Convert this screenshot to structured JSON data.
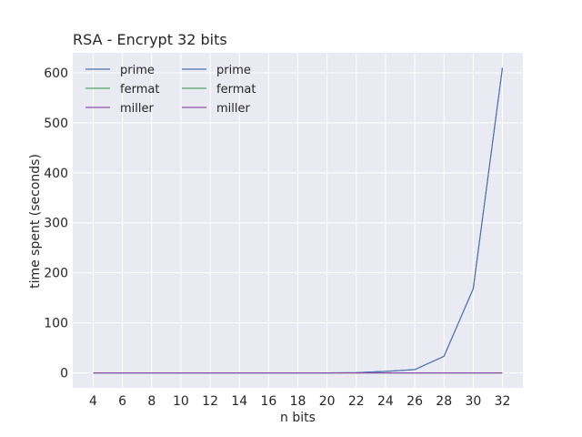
{
  "chart_data": {
    "type": "line",
    "title": "RSA - Encrypt 32 bits",
    "xlabel": "n bits",
    "ylabel": "time spent (seconds)",
    "x": [
      4,
      6,
      8,
      10,
      12,
      14,
      16,
      18,
      20,
      22,
      24,
      26,
      28,
      30,
      32
    ],
    "xticks": [
      "4",
      "6",
      "8",
      "10",
      "12",
      "14",
      "16",
      "18",
      "20",
      "22",
      "24",
      "26",
      "28",
      "30",
      "32"
    ],
    "yticks": [
      "0",
      "100",
      "200",
      "300",
      "400",
      "500",
      "600"
    ],
    "xlim": [
      2.6,
      33.4
    ],
    "ylim": [
      -30,
      640
    ],
    "grid": true,
    "legend_position": "top-left",
    "legend_columns": 2,
    "series": [
      {
        "name": "prime",
        "color": "#4c72b0",
        "values": [
          0,
          0,
          0,
          0,
          0,
          0,
          0,
          0,
          0,
          0.4,
          2.8,
          6.5,
          33,
          168,
          610
        ]
      },
      {
        "name": "fermat",
        "color": "#55a868",
        "values": [
          0,
          0,
          0,
          0,
          0,
          0,
          0,
          0,
          0,
          0,
          0,
          0,
          0,
          0,
          0
        ]
      },
      {
        "name": "miller",
        "color": "#8c4fa8",
        "values": [
          0,
          0,
          0,
          0,
          0,
          0,
          0,
          0,
          0,
          0,
          0,
          0,
          0,
          0,
          0
        ]
      },
      {
        "name": "prime",
        "color": "#4c72b0",
        "values": [
          0,
          0,
          0,
          0,
          0,
          0,
          0,
          0,
          0,
          0.4,
          2.8,
          6.5,
          33,
          168,
          610
        ]
      },
      {
        "name": "fermat",
        "color": "#55a868",
        "values": [
          0,
          0,
          0,
          0,
          0,
          0,
          0,
          0,
          0,
          0,
          0,
          0,
          0,
          0,
          0
        ]
      },
      {
        "name": "miller",
        "color": "#8c4fa8",
        "values": [
          0,
          0,
          0,
          0,
          0,
          0,
          0,
          0,
          0,
          0,
          0,
          0,
          0,
          0,
          0
        ]
      }
    ],
    "colors": {
      "plot_background": "#eaeaf2",
      "grid": "#ffffff",
      "text": "#262626"
    }
  }
}
